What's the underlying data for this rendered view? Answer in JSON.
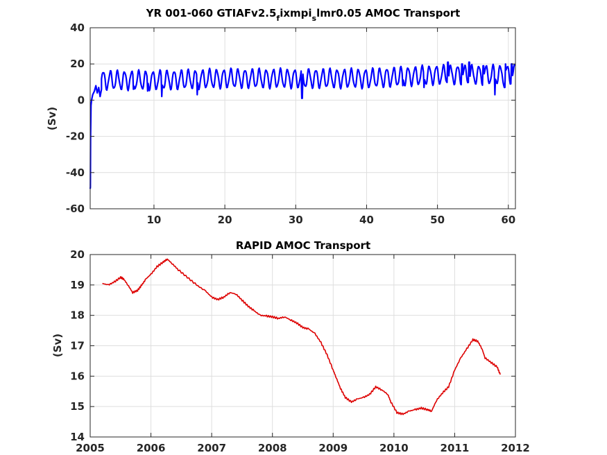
{
  "chart_data": [
    {
      "type": "line",
      "title": "YR 001-060 GTIAFv2.5",
      "title_sub1": "f",
      "title_mid": "ixmpi",
      "title_sub2": "s",
      "title_end": "lmr0.05 AMOC Transport",
      "xlabel": "",
      "ylabel": "(Sv)",
      "xlim": [
        1,
        61
      ],
      "ylim": [
        -60,
        40
      ],
      "xticks": [
        10,
        20,
        30,
        40,
        50,
        60
      ],
      "yticks": [
        -60,
        -40,
        -20,
        0,
        20,
        40
      ],
      "grid": true,
      "color": "#0000ff",
      "series": [
        {
          "spinup": [
            [
              1.0,
              -49
            ],
            [
              1.03,
              -48
            ],
            [
              1.06,
              -20
            ],
            [
              1.12,
              -3
            ],
            [
              1.2,
              0
            ],
            [
              1.35,
              3
            ],
            [
              1.6,
              5
            ],
            [
              1.8,
              8
            ],
            [
              2.0,
              4
            ],
            [
              2.2,
              7
            ],
            [
              2.4,
              2
            ],
            [
              2.6,
              6
            ]
          ],
          "seasonal": {
            "x_start": 2.6,
            "x_end": 61,
            "period": 1,
            "baseline": [
              [
                3,
                11
              ],
              [
                10,
                11
              ],
              [
                20,
                12
              ],
              [
                30,
                12
              ],
              [
                40,
                12
              ],
              [
                45,
                13
              ],
              [
                50,
                14
              ],
              [
                55,
                14
              ],
              [
                61,
                14
              ]
            ],
            "amplitude": 5,
            "dips": [
              [
                7.1,
                6
              ],
              [
                9.1,
                5
              ],
              [
                11.1,
                2
              ],
              [
                16.1,
                3
              ],
              [
                30.9,
                1
              ],
              [
                45.1,
                8
              ],
              [
                48.1,
                7
              ],
              [
                58.1,
                3
              ],
              [
                59.5,
                7
              ]
            ],
            "peaks": [
              [
                51.5,
                21
              ],
              [
                53.5,
                20
              ],
              [
                54.5,
                21
              ],
              [
                56.5,
                19
              ],
              [
                59.6,
                20
              ],
              [
                60.5,
                20
              ]
            ]
          }
        }
      ]
    },
    {
      "type": "line",
      "title": "RAPID AMOC Transport",
      "xlabel": "",
      "ylabel": "(Sv)",
      "xlim": [
        2005,
        2012
      ],
      "ylim": [
        14,
        20
      ],
      "xticks": [
        2005,
        2006,
        2007,
        2008,
        2009,
        2010,
        2011,
        2012
      ],
      "yticks": [
        14,
        15,
        16,
        17,
        18,
        19,
        20
      ],
      "grid": true,
      "color": "#dd0000",
      "series": [
        {
          "x": [
            2005.2,
            2005.3,
            2005.4,
            2005.5,
            2005.55,
            2005.62,
            2005.7,
            2005.78,
            2005.85,
            2005.92,
            2006.0,
            2006.1,
            2006.2,
            2006.27,
            2006.35,
            2006.45,
            2006.6,
            2006.75,
            2006.9,
            2007.0,
            2007.1,
            2007.2,
            2007.3,
            2007.4,
            2007.5,
            2007.6,
            2007.7,
            2007.8,
            2007.9,
            2008.0,
            2008.1,
            2008.2,
            2008.3,
            2008.4,
            2008.5,
            2008.6,
            2008.7,
            2008.8,
            2008.9,
            2009.0,
            2009.05,
            2009.12,
            2009.2,
            2009.3,
            2009.4,
            2009.5,
            2009.6,
            2009.7,
            2009.8,
            2009.9,
            2009.95,
            2010.05,
            2010.15,
            2010.25,
            2010.35,
            2010.45,
            2010.55,
            2010.62,
            2010.7,
            2010.8,
            2010.9,
            2011.0,
            2011.1,
            2011.2,
            2011.3,
            2011.38,
            2011.45,
            2011.5,
            2011.6,
            2011.7,
            2011.75
          ],
          "y": [
            19.05,
            19.0,
            19.1,
            19.25,
            19.2,
            19.0,
            18.75,
            18.82,
            19.0,
            19.2,
            19.35,
            19.6,
            19.75,
            19.85,
            19.7,
            19.5,
            19.25,
            19.0,
            18.8,
            18.6,
            18.52,
            18.6,
            18.75,
            18.7,
            18.5,
            18.3,
            18.15,
            18.0,
            17.98,
            17.95,
            17.9,
            17.95,
            17.85,
            17.75,
            17.6,
            17.55,
            17.4,
            17.1,
            16.7,
            16.2,
            15.95,
            15.6,
            15.3,
            15.15,
            15.25,
            15.3,
            15.4,
            15.65,
            15.55,
            15.4,
            15.15,
            14.8,
            14.75,
            14.85,
            14.9,
            14.95,
            14.9,
            14.85,
            15.2,
            15.45,
            15.65,
            16.2,
            16.6,
            16.9,
            17.2,
            17.15,
            16.9,
            16.6,
            16.45,
            16.3,
            16.05
          ]
        }
      ]
    }
  ]
}
